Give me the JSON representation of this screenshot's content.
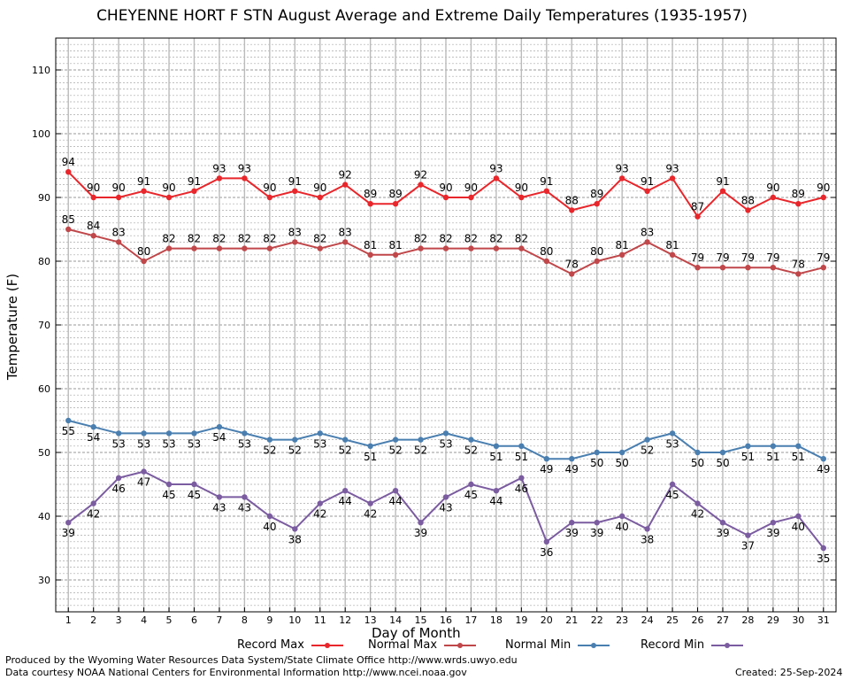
{
  "title": "CHEYENNE HORT F STN August Average and Extreme Daily Temperatures (1935-1957)",
  "xlabel": "Day of Month",
  "ylabel": "Temperature (F)",
  "footer": {
    "produced_by": "Produced by the Wyoming Water Resources Data System/State Climate Office http://www.wrds.uwyo.edu",
    "data_courtesy": "Data courtesy NOAA National Centers for Environmental Information http://www.ncei.noaa.gov",
    "created": "Created: 25-Sep-2024"
  },
  "chart_data": {
    "type": "line",
    "title": "CHEYENNE HORT F STN August Average and Extreme Daily Temperatures (1935-1957)",
    "xlabel": "Day of Month",
    "ylabel": "Temperature (F)",
    "x": [
      1,
      2,
      3,
      4,
      5,
      6,
      7,
      8,
      9,
      10,
      11,
      12,
      13,
      14,
      15,
      16,
      17,
      18,
      19,
      20,
      21,
      22,
      23,
      24,
      25,
      26,
      27,
      28,
      29,
      30,
      31
    ],
    "xlim": [
      0.5,
      31.5
    ],
    "ylim": [
      25,
      115
    ],
    "yticks": [
      30,
      40,
      50,
      60,
      70,
      80,
      90,
      100,
      110
    ],
    "grid": true,
    "legend_position": "bottom",
    "series": [
      {
        "name": "Record Max",
        "color": "#e8262b",
        "values": [
          94,
          90,
          90,
          91,
          90,
          91,
          93,
          93,
          90,
          91,
          90,
          92,
          89,
          89,
          92,
          90,
          90,
          93,
          90,
          91,
          88,
          89,
          93,
          91,
          93,
          87,
          91,
          88,
          90,
          89,
          90
        ]
      },
      {
        "name": "Normal Max",
        "color": "#c0474a",
        "values": [
          85,
          84,
          83,
          80,
          82,
          82,
          82,
          82,
          82,
          83,
          82,
          83,
          81,
          81,
          82,
          82,
          82,
          82,
          82,
          80,
          78,
          80,
          81,
          83,
          81,
          79,
          79,
          79,
          79,
          78,
          79
        ]
      },
      {
        "name": "Normal Min",
        "color": "#4a7fb0",
        "values": [
          55,
          54,
          53,
          53,
          53,
          53,
          54,
          53,
          52,
          52,
          53,
          52,
          51,
          52,
          52,
          53,
          52,
          51,
          51,
          49,
          49,
          50,
          50,
          52,
          53,
          50,
          50,
          51,
          51,
          51,
          49
        ]
      },
      {
        "name": "Record Min",
        "color": "#7b5ca0",
        "values": [
          39,
          42,
          46,
          47,
          45,
          45,
          43,
          43,
          40,
          38,
          42,
          44,
          42,
          44,
          39,
          43,
          45,
          44,
          46,
          36,
          39,
          39,
          40,
          38,
          45,
          42,
          39,
          37,
          39,
          40,
          35
        ]
      }
    ]
  }
}
